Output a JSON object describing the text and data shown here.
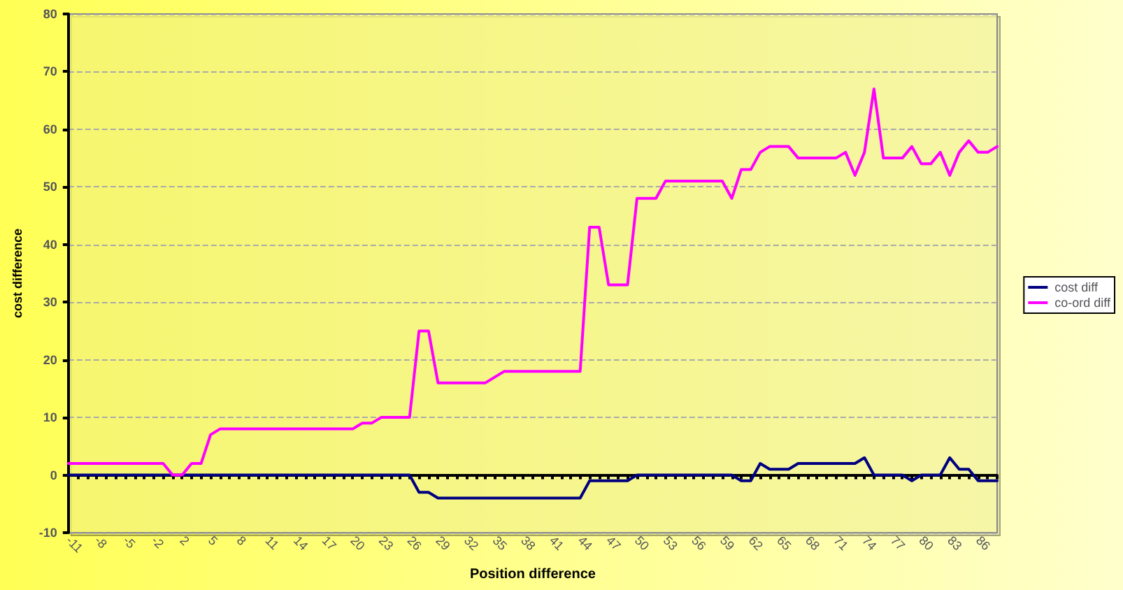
{
  "chart_data": {
    "type": "line",
    "xlabel": "Position difference",
    "ylabel": "cost difference",
    "categories": [
      "-11",
      null,
      null,
      "-8",
      null,
      null,
      "-5",
      null,
      null,
      "-2",
      null,
      null,
      "2",
      null,
      null,
      "5",
      null,
      null,
      "8",
      null,
      null,
      "11",
      null,
      null,
      "14",
      null,
      null,
      "17",
      null,
      null,
      "20",
      null,
      null,
      "23",
      null,
      null,
      "26",
      null,
      null,
      "29",
      null,
      null,
      "32",
      null,
      null,
      "35",
      null,
      null,
      "38",
      null,
      null,
      "41",
      null,
      null,
      "44",
      null,
      null,
      "47",
      null,
      null,
      "50",
      null,
      null,
      "53",
      null,
      null,
      "56",
      null,
      null,
      "59",
      null,
      null,
      "62",
      null,
      null,
      "65",
      null,
      null,
      "68",
      null,
      null,
      "71",
      null,
      null,
      "74",
      null,
      null,
      "77",
      null,
      null,
      "80",
      null,
      null,
      "83",
      null,
      null,
      "86",
      null,
      null
    ],
    "series": [
      {
        "name": "cost diff",
        "color": "#000080",
        "values": [
          0,
          0,
          0,
          0,
          0,
          0,
          0,
          0,
          0,
          0,
          0,
          0,
          0,
          0,
          0,
          0,
          0,
          0,
          0,
          0,
          0,
          0,
          0,
          0,
          0,
          0,
          0,
          0,
          0,
          0,
          0,
          0,
          0,
          0,
          0,
          0,
          0,
          -3,
          -3,
          -4,
          -4,
          -4,
          -4,
          -4,
          -4,
          -4,
          -4,
          -4,
          -4,
          -4,
          -4,
          -4,
          -4,
          -4,
          -4,
          -1,
          -1,
          -1,
          -1,
          -1,
          0,
          0,
          0,
          0,
          0,
          0,
          0,
          0,
          0,
          0,
          0,
          -1,
          -1,
          2,
          1,
          1,
          1,
          2,
          2,
          2,
          2,
          2,
          2,
          2,
          3,
          0,
          0,
          0,
          0,
          -1,
          0,
          0,
          0,
          3,
          1,
          1,
          -1,
          -1,
          -1
        ]
      },
      {
        "name": "co-ord diff",
        "color": "#ff00ff",
        "values": [
          2,
          2,
          2,
          2,
          2,
          2,
          2,
          2,
          2,
          2,
          2,
          0,
          0,
          2,
          2,
          7,
          8,
          8,
          8,
          8,
          8,
          8,
          8,
          8,
          8,
          8,
          8,
          8,
          8,
          8,
          8,
          9,
          9,
          10,
          10,
          10,
          10,
          25,
          25,
          16,
          16,
          16,
          16,
          16,
          16,
          17,
          18,
          18,
          18,
          18,
          18,
          18,
          18,
          18,
          18,
          43,
          43,
          33,
          33,
          33,
          48,
          48,
          48,
          51,
          51,
          51,
          51,
          51,
          51,
          51,
          48,
          53,
          53,
          56,
          57,
          57,
          57,
          55,
          55,
          55,
          55,
          55,
          56,
          52,
          56,
          67,
          55,
          55,
          55,
          57,
          54,
          54,
          56,
          52,
          56,
          58,
          56,
          56,
          57
        ]
      }
    ],
    "ylim": [
      -10,
      80
    ],
    "yticks": [
      -10,
      0,
      10,
      20,
      30,
      40,
      50,
      60,
      70,
      80
    ],
    "grid": "y",
    "legend": "right",
    "line_style": "solid"
  }
}
